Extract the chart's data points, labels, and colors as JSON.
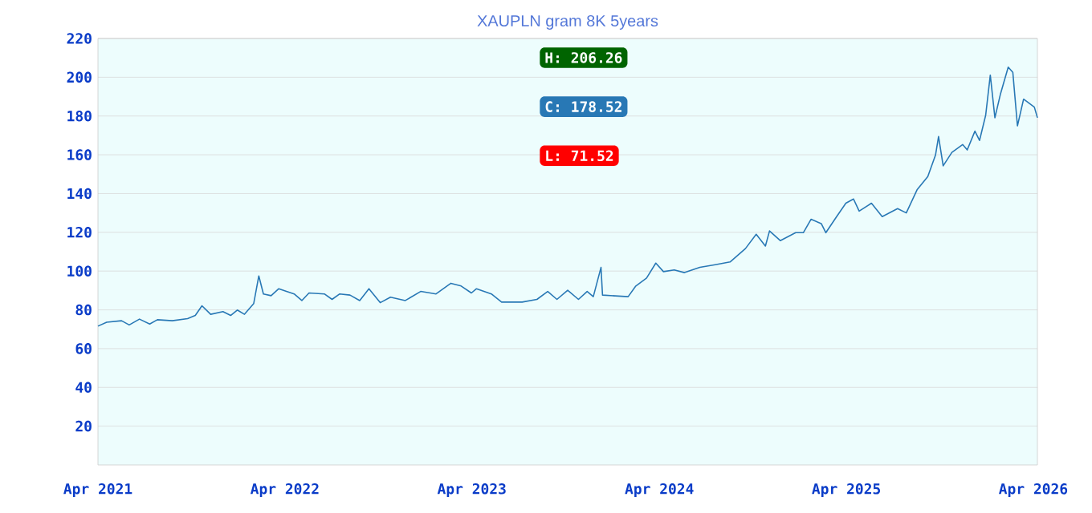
{
  "chart_data": {
    "type": "line",
    "title": "XAUPLN gram 8K 5years",
    "x": [
      "2021-04-01",
      "2021-04-18",
      "2021-05-17",
      "2021-06-01",
      "2021-06-21",
      "2021-07-11",
      "2021-07-26",
      "2021-08-24",
      "2021-09-23",
      "2021-10-08",
      "2021-10-21",
      "2021-11-07",
      "2021-12-01",
      "2021-12-16",
      "2021-12-29",
      "2022-01-12",
      "2022-01-30",
      "2022-02-09",
      "2022-02-18",
      "2022-03-05",
      "2022-03-20",
      "2022-04-04",
      "2022-04-19",
      "2022-05-04",
      "2022-05-18",
      "2022-06-17",
      "2022-07-02",
      "2022-07-17",
      "2022-08-06",
      "2022-08-25",
      "2022-09-12",
      "2022-10-04",
      "2022-10-24",
      "2022-11-22",
      "2022-12-22",
      "2023-01-21",
      "2023-02-19",
      "2023-03-11",
      "2023-03-31",
      "2023-04-10",
      "2023-05-09",
      "2023-05-29",
      "2023-06-28",
      "2023-07-08",
      "2023-08-06",
      "2023-08-27",
      "2023-09-14",
      "2023-10-05",
      "2023-10-26",
      "2023-11-12",
      "2023-11-24",
      "2023-12-09",
      "2023-12-12",
      "2024-01-31",
      "2024-02-15",
      "2024-03-07",
      "2024-03-25",
      "2024-04-09",
      "2024-04-30",
      "2024-05-20",
      "2024-06-19",
      "2024-07-19",
      "2024-08-17",
      "2024-09-16",
      "2024-10-07",
      "2024-10-25",
      "2024-11-02",
      "2024-11-23",
      "2024-12-23",
      "2025-01-07",
      "2025-01-22",
      "2025-02-11",
      "2025-02-20",
      "2025-03-13",
      "2025-03-31",
      "2025-04-15",
      "2025-04-26",
      "2025-05-20",
      "2025-06-10",
      "2025-07-10",
      "2025-07-27",
      "2025-08-17",
      "2025-09-07",
      "2025-09-22",
      "2025-09-28",
      "2025-10-07",
      "2025-10-24",
      "2025-11-14",
      "2025-11-23",
      "2025-12-08",
      "2025-12-17",
      "2025-12-29",
      "2026-01-07",
      "2026-01-16",
      "2026-01-27",
      "2026-02-11",
      "2026-02-20",
      "2026-03-01",
      "2026-03-13",
      "2026-04-03",
      "2026-04-09"
    ],
    "values": [
      71.6,
      73.6,
      74.4,
      72.2,
      75.2,
      72.7,
      74.9,
      74.4,
      75.5,
      77.1,
      82.1,
      77.7,
      79.1,
      77.1,
      79.9,
      77.7,
      83.2,
      97.5,
      88.2,
      87.3,
      90.9,
      89.5,
      88.2,
      84.8,
      88.7,
      88.2,
      85.4,
      88.2,
      87.6,
      84.8,
      90.9,
      83.7,
      86.5,
      84.8,
      89.5,
      88.2,
      93.7,
      92.3,
      88.7,
      90.9,
      88.2,
      84.0,
      84.0,
      84.0,
      85.4,
      89.5,
      85.4,
      90.1,
      85.4,
      89.5,
      86.8,
      101.9,
      87.6,
      86.8,
      92.3,
      96.4,
      104.1,
      99.7,
      100.6,
      99.2,
      101.9,
      103.3,
      104.7,
      111.6,
      119.0,
      112.9,
      120.7,
      115.7,
      119.8,
      119.8,
      126.7,
      124.5,
      119.8,
      128.1,
      135.0,
      137.2,
      130.9,
      135.0,
      128.1,
      132.2,
      130.0,
      141.9,
      148.8,
      159.8,
      169.4,
      154.3,
      161.2,
      165.3,
      162.5,
      172.2,
      167.4,
      180.4,
      201.1,
      179.1,
      191.5,
      205.2,
      202.5,
      174.9,
      188.7,
      184.6,
      179.1
    ],
    "color": "#2878b5",
    "xlim": [
      "2021-04-01",
      "2026-04-09"
    ],
    "xticks": [
      {
        "value": "2021-04-01",
        "label": "Apr 2021"
      },
      {
        "value": "2022-04-01",
        "label": "Apr 2022"
      },
      {
        "value": "2023-04-01",
        "label": "Apr 2023"
      },
      {
        "value": "2024-04-01",
        "label": "Apr 2024"
      },
      {
        "value": "2025-04-01",
        "label": "Apr 2025"
      },
      {
        "value": "2026-04-01",
        "label": "Apr 2026"
      }
    ],
    "ylim": [
      0,
      220
    ],
    "yticks": [
      20,
      40,
      60,
      80,
      100,
      120,
      140,
      160,
      180,
      200,
      220
    ],
    "grid": "y",
    "annotations": [
      "H: 206.26",
      "C: 178.52",
      "L: 71.52"
    ]
  }
}
